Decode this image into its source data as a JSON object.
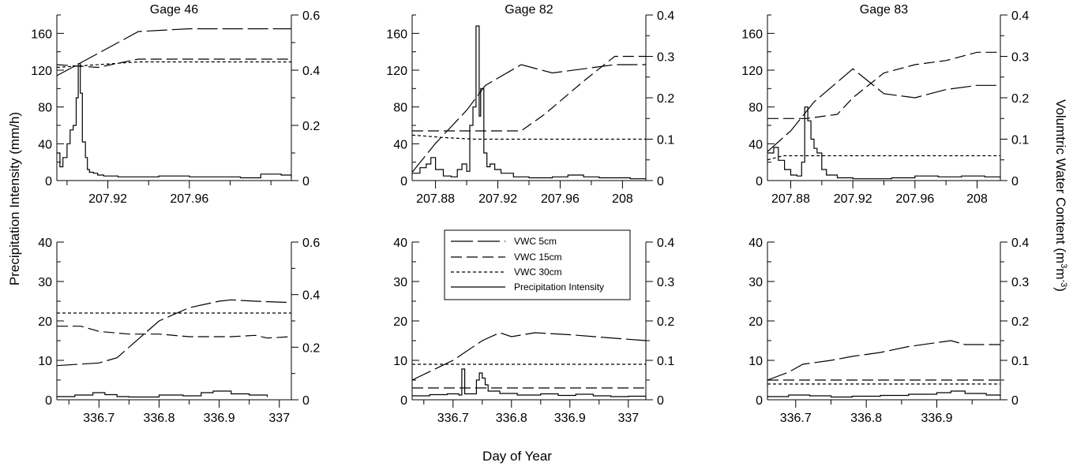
{
  "figure": {
    "left_axis_label": "Precipitation Intensity (mm/h)",
    "right_axis_label_main": "Volumtric Water Content (m",
    "right_axis_label_sup1": "3",
    "right_axis_label_mid": "m",
    "right_axis_label_sup2": "-3",
    "right_axis_label_end": ")",
    "bottom_axis_label": "Day of Year",
    "legend": [
      {
        "label": "VWC 5cm",
        "style": "longdash"
      },
      {
        "label": "VWC 15cm",
        "style": "dash"
      },
      {
        "label": "VWC 30cm",
        "style": "shortdash"
      },
      {
        "label": "Precipitation Intensity",
        "style": "solid"
      }
    ]
  },
  "chart_data": [
    {
      "type": "line",
      "title": "Gage 46",
      "xlim": [
        207.895,
        208.01
      ],
      "xticks": [
        207.92,
        207.96
      ],
      "xtick_labels": [
        "207.92",
        "207.96"
      ],
      "ylim": [
        0,
        180
      ],
      "yticks": [
        0,
        40,
        80,
        120,
        160
      ],
      "y2lim": [
        0,
        0.6
      ],
      "y2ticks": [
        0,
        0.2,
        0.4,
        0.6
      ],
      "series": [
        {
          "name": "VWC 5cm",
          "axis": "right",
          "x": [
            207.895,
            207.935,
            207.96,
            208.01
          ],
          "y": [
            0.38,
            0.54,
            0.55,
            0.55
          ]
        },
        {
          "name": "VWC 15cm",
          "axis": "right",
          "x": [
            207.895,
            207.915,
            207.935,
            208.01
          ],
          "y": [
            0.42,
            0.41,
            0.44,
            0.44
          ]
        },
        {
          "name": "VWC 30cm",
          "axis": "right",
          "x": [
            207.895,
            207.935,
            208.01
          ],
          "y": [
            0.41,
            0.43,
            0.43
          ]
        },
        {
          "name": "Precipitation Intensity",
          "axis": "left",
          "step": true,
          "x": [
            207.895,
            207.8965,
            207.898,
            207.9,
            207.9015,
            207.903,
            207.9045,
            207.9055,
            207.9065,
            207.9075,
            207.909,
            207.91,
            207.911,
            207.913,
            207.915,
            207.918,
            207.925,
            207.935,
            207.945,
            207.96,
            207.975,
            207.985,
            207.995,
            208.005,
            208.01
          ],
          "y": [
            30,
            15,
            25,
            40,
            55,
            60,
            90,
            127,
            95,
            42,
            25,
            12,
            9,
            8,
            6,
            5,
            4,
            4,
            5,
            4,
            4,
            3,
            7,
            6,
            3
          ]
        }
      ]
    },
    {
      "type": "line",
      "title": "Gage 82",
      "xlim": [
        207.865,
        208.015
      ],
      "xticks": [
        207.88,
        207.92,
        207.96,
        208
      ],
      "xtick_labels": [
        "207.88",
        "207.92",
        "207.96",
        "208"
      ],
      "ylim": [
        0,
        180
      ],
      "yticks": [
        0,
        40,
        80,
        120,
        160
      ],
      "y2lim": [
        0,
        0.4
      ],
      "y2ticks": [
        0,
        0.1,
        0.2,
        0.3,
        0.4
      ],
      "series": [
        {
          "name": "VWC 5cm",
          "axis": "right",
          "x": [
            207.865,
            207.88,
            207.9,
            207.912,
            207.935,
            207.955,
            207.975,
            207.995,
            208.015
          ],
          "y": [
            0.02,
            0.09,
            0.17,
            0.23,
            0.28,
            0.26,
            0.27,
            0.28,
            0.28
          ]
        },
        {
          "name": "VWC 15cm",
          "axis": "right",
          "x": [
            207.865,
            207.935,
            207.95,
            207.975,
            207.995,
            208.015
          ],
          "y": [
            0.12,
            0.12,
            0.16,
            0.24,
            0.3,
            0.3
          ]
        },
        {
          "name": "VWC 30cm",
          "axis": "right",
          "x": [
            207.865,
            207.885,
            207.905,
            208.015
          ],
          "y": [
            0.11,
            0.104,
            0.1,
            0.1
          ]
        },
        {
          "name": "Precipitation Intensity",
          "axis": "left",
          "step": true,
          "x": [
            207.865,
            207.87,
            207.874,
            207.877,
            207.88,
            207.885,
            207.89,
            207.894,
            207.897,
            207.9,
            207.902,
            207.904,
            207.906,
            207.908,
            207.909,
            207.911,
            207.913,
            207.915,
            207.918,
            207.922,
            207.93,
            207.94,
            207.955,
            207.965,
            207.975,
            207.985,
            207.995,
            208.005,
            208.015
          ],
          "y": [
            8,
            14,
            18,
            25,
            12,
            5,
            4,
            12,
            18,
            10,
            60,
            80,
            168,
            70,
            100,
            30,
            15,
            18,
            12,
            8,
            4,
            3,
            4,
            6,
            4,
            3,
            3,
            2,
            2
          ]
        }
      ]
    },
    {
      "type": "line",
      "title": "Gage 83",
      "xlim": [
        207.865,
        208.015
      ],
      "xticks": [
        207.88,
        207.92,
        207.96,
        208
      ],
      "xtick_labels": [
        "207.88",
        "207.92",
        "207.96",
        "208"
      ],
      "ylim": [
        0,
        180
      ],
      "yticks": [
        0,
        40,
        80,
        120,
        160
      ],
      "y2lim": [
        0,
        0.4
      ],
      "y2ticks": [
        0,
        0.1,
        0.2,
        0.3,
        0.4
      ],
      "series": [
        {
          "name": "VWC 5cm",
          "axis": "right",
          "x": [
            207.865,
            207.88,
            207.895,
            207.92,
            207.94,
            207.96,
            207.98,
            208,
            208.015
          ],
          "y": [
            0.07,
            0.12,
            0.19,
            0.27,
            0.21,
            0.2,
            0.22,
            0.23,
            0.23
          ]
        },
        {
          "name": "VWC 15cm",
          "axis": "right",
          "x": [
            207.865,
            207.89,
            207.91,
            207.92,
            207.94,
            207.96,
            207.98,
            208,
            208.015
          ],
          "y": [
            0.15,
            0.15,
            0.16,
            0.2,
            0.26,
            0.28,
            0.29,
            0.31,
            0.31
          ]
        },
        {
          "name": "VWC 30cm",
          "axis": "right",
          "x": [
            207.865,
            207.875,
            208.015
          ],
          "y": [
            0.05,
            0.06,
            0.06
          ]
        },
        {
          "name": "Precipitation Intensity",
          "axis": "left",
          "step": true,
          "x": [
            207.865,
            207.869,
            207.872,
            207.876,
            207.88,
            207.884,
            207.887,
            207.889,
            207.891,
            207.893,
            207.895,
            207.897,
            207.9,
            207.903,
            207.91,
            207.92,
            207.93,
            207.945,
            207.96,
            207.975,
            207.99,
            208.005,
            208.015
          ],
          "y": [
            30,
            36,
            22,
            12,
            6,
            5,
            20,
            80,
            65,
            45,
            35,
            30,
            12,
            6,
            3,
            2,
            2,
            3,
            5,
            4,
            5,
            4,
            3
          ]
        }
      ]
    },
    {
      "type": "line",
      "title": "",
      "xlim": [
        336.63,
        337.02
      ],
      "xticks": [
        336.7,
        336.8,
        336.9,
        337
      ],
      "xtick_labels": [
        "336.7",
        "336.8",
        "336.9",
        "337"
      ],
      "ylim": [
        0,
        40
      ],
      "yticks": [
        0,
        10,
        20,
        30,
        40
      ],
      "y2lim": [
        0,
        0.6
      ],
      "y2ticks": [
        0,
        0.2,
        0.4,
        0.6
      ],
      "series": [
        {
          "name": "VWC 5cm",
          "axis": "right",
          "x": [
            336.63,
            336.7,
            336.73,
            336.76,
            336.8,
            336.85,
            336.9,
            336.92,
            336.96,
            337.02
          ],
          "y": [
            0.13,
            0.14,
            0.16,
            0.22,
            0.3,
            0.35,
            0.375,
            0.38,
            0.375,
            0.37
          ]
        },
        {
          "name": "VWC 15cm",
          "axis": "right",
          "x": [
            336.63,
            336.67,
            336.7,
            336.75,
            336.8,
            336.85,
            336.92,
            336.96,
            336.98,
            337.02
          ],
          "y": [
            0.28,
            0.28,
            0.26,
            0.25,
            0.25,
            0.24,
            0.24,
            0.245,
            0.235,
            0.24
          ]
        },
        {
          "name": "VWC 30cm",
          "axis": "right",
          "x": [
            336.63,
            337.02
          ],
          "y": [
            0.33,
            0.33
          ]
        },
        {
          "name": "Precipitation Intensity",
          "axis": "left",
          "step": true,
          "x": [
            336.63,
            336.66,
            336.69,
            336.71,
            336.73,
            336.75,
            336.8,
            336.84,
            336.87,
            336.89,
            336.92,
            336.95,
            336.98
          ],
          "y": [
            0.8,
            1.2,
            1.8,
            1.3,
            0.8,
            0.7,
            1.2,
            1.0,
            1.8,
            2.2,
            1.5,
            1.2,
            0.7
          ]
        }
      ]
    },
    {
      "type": "line",
      "title": "",
      "xlim": [
        336.63,
        337.03
      ],
      "xticks": [
        336.7,
        336.8,
        336.9,
        337
      ],
      "xtick_labels": [
        "336.7",
        "336.8",
        "336.9",
        "337"
      ],
      "ylim": [
        0,
        40
      ],
      "yticks": [
        0,
        10,
        20,
        30,
        40
      ],
      "y2lim": [
        0,
        0.4
      ],
      "y2ticks": [
        0,
        0.1,
        0.2,
        0.3,
        0.4
      ],
      "series": [
        {
          "name": "VWC 5cm",
          "axis": "right",
          "x": [
            336.63,
            336.7,
            336.75,
            336.78,
            336.8,
            336.84,
            336.9,
            336.96,
            337.03
          ],
          "y": [
            0.05,
            0.1,
            0.15,
            0.17,
            0.16,
            0.17,
            0.165,
            0.158,
            0.15
          ]
        },
        {
          "name": "VWC 15cm",
          "axis": "right",
          "x": [
            336.63,
            337.03
          ],
          "y": [
            0.03,
            0.03
          ]
        },
        {
          "name": "VWC 30cm",
          "axis": "right",
          "x": [
            336.63,
            337.03
          ],
          "y": [
            0.09,
            0.09
          ]
        },
        {
          "name": "Precipitation Intensity",
          "axis": "left",
          "step": true,
          "x": [
            336.63,
            336.66,
            336.69,
            336.71,
            336.715,
            336.72,
            336.74,
            336.745,
            336.75,
            336.755,
            336.76,
            336.78,
            336.81,
            336.85,
            336.88,
            336.91,
            336.94,
            336.97,
            337.0,
            337.03
          ],
          "y": [
            1.0,
            1.3,
            1.5,
            1.2,
            7.8,
            1.5,
            5.0,
            6.8,
            5.5,
            3.8,
            2.2,
            1.6,
            1.2,
            1.5,
            1.1,
            1.4,
            1.0,
            0.8,
            0.9,
            0.9
          ]
        }
      ]
    },
    {
      "type": "line",
      "title": "",
      "xlim": [
        336.66,
        336.99
      ],
      "xticks": [
        336.7,
        336.8,
        336.9
      ],
      "xtick_labels": [
        "336.7",
        "336.8",
        "336.9"
      ],
      "ylim": [
        0,
        40
      ],
      "yticks": [
        0,
        10,
        20,
        30,
        40
      ],
      "y2lim": [
        0,
        0.4
      ],
      "y2ticks": [
        0,
        0.1,
        0.2,
        0.3,
        0.4
      ],
      "series": [
        {
          "name": "VWC 5cm",
          "axis": "right",
          "x": [
            336.66,
            336.69,
            336.71,
            336.75,
            336.78,
            336.82,
            336.86,
            336.92,
            336.94,
            336.99
          ],
          "y": [
            0.05,
            0.07,
            0.09,
            0.1,
            0.11,
            0.12,
            0.135,
            0.15,
            0.14,
            0.14
          ]
        },
        {
          "name": "VWC 15cm",
          "axis": "right",
          "x": [
            336.66,
            336.99
          ],
          "y": [
            0.05,
            0.05
          ]
        },
        {
          "name": "VWC 30cm",
          "axis": "right",
          "x": [
            336.66,
            336.99
          ],
          "y": [
            0.04,
            0.04
          ]
        },
        {
          "name": "Precipitation Intensity",
          "axis": "left",
          "step": true,
          "x": [
            336.66,
            336.69,
            336.72,
            336.75,
            336.78,
            336.82,
            336.86,
            336.9,
            336.92,
            336.94,
            336.97,
            336.99
          ],
          "y": [
            0.8,
            1.2,
            1.0,
            0.7,
            0.9,
            1.1,
            1.4,
            1.8,
            2.2,
            1.6,
            1.2,
            1.0
          ]
        }
      ]
    }
  ]
}
